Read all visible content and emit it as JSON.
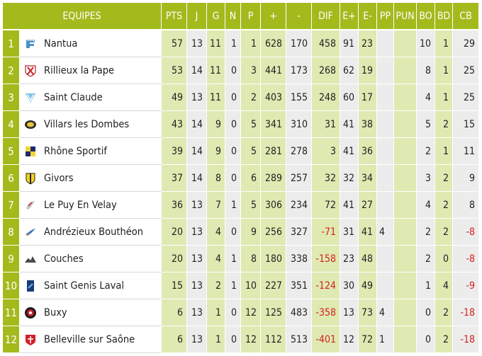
{
  "columns": [
    "EQUIPES",
    "PTS",
    "J",
    "G",
    "N",
    "P",
    "+",
    "-",
    "DIF",
    "E+",
    "E-",
    "PP",
    "PUN",
    "BO",
    "BD",
    "CB"
  ],
  "colors": {
    "accent": "#a3ba1c",
    "alt_cell": "#dfe9b2",
    "cell": "#ececec",
    "negative": "#d32020"
  },
  "rows": [
    {
      "rank": "1",
      "team": "Nantua",
      "logo": "nantua-logo-icon",
      "pts": "57",
      "j": "13",
      "g": "11",
      "n": "1",
      "p": "1",
      "plus": "628",
      "minus": "170",
      "dif": "458",
      "eplus": "91",
      "eminus": "23",
      "pp": "",
      "pun": "",
      "bo": "10",
      "bd": "1",
      "cb": "29"
    },
    {
      "rank": "2",
      "team": "Rillieux la Pape",
      "logo": "rillieux-logo-icon",
      "pts": "53",
      "j": "14",
      "g": "11",
      "n": "0",
      "p": "3",
      "plus": "441",
      "minus": "173",
      "dif": "268",
      "eplus": "62",
      "eminus": "19",
      "pp": "",
      "pun": "",
      "bo": "8",
      "bd": "1",
      "cb": "25"
    },
    {
      "rank": "3",
      "team": "Saint Claude",
      "logo": "saint-claude-logo-icon",
      "pts": "49",
      "j": "13",
      "g": "11",
      "n": "0",
      "p": "2",
      "plus": "403",
      "minus": "155",
      "dif": "248",
      "eplus": "60",
      "eminus": "17",
      "pp": "",
      "pun": "",
      "bo": "4",
      "bd": "1",
      "cb": "25"
    },
    {
      "rank": "4",
      "team": "Villars les Dombes",
      "logo": "villars-logo-icon",
      "pts": "43",
      "j": "14",
      "g": "9",
      "n": "0",
      "p": "5",
      "plus": "341",
      "minus": "310",
      "dif": "31",
      "eplus": "41",
      "eminus": "38",
      "pp": "",
      "pun": "",
      "bo": "5",
      "bd": "2",
      "cb": "15"
    },
    {
      "rank": "5",
      "team": "Rhône Sportif",
      "logo": "rhone-sportif-logo-icon",
      "pts": "39",
      "j": "14",
      "g": "9",
      "n": "0",
      "p": "5",
      "plus": "281",
      "minus": "278",
      "dif": "3",
      "eplus": "41",
      "eminus": "36",
      "pp": "",
      "pun": "",
      "bo": "2",
      "bd": "1",
      "cb": "11"
    },
    {
      "rank": "6",
      "team": "Givors",
      "logo": "givors-logo-icon",
      "pts": "37",
      "j": "14",
      "g": "8",
      "n": "0",
      "p": "6",
      "plus": "289",
      "minus": "257",
      "dif": "32",
      "eplus": "32",
      "eminus": "34",
      "pp": "",
      "pun": "",
      "bo": "3",
      "bd": "2",
      "cb": "9"
    },
    {
      "rank": "7",
      "team": "Le Puy En Velay",
      "logo": "le-puy-logo-icon",
      "pts": "36",
      "j": "13",
      "g": "7",
      "n": "1",
      "p": "5",
      "plus": "306",
      "minus": "234",
      "dif": "72",
      "eplus": "41",
      "eminus": "27",
      "pp": "",
      "pun": "",
      "bo": "4",
      "bd": "2",
      "cb": "8"
    },
    {
      "rank": "8",
      "team": "Andrézieux Bouthéon",
      "logo": "andrezieux-logo-icon",
      "pts": "20",
      "j": "13",
      "g": "4",
      "n": "0",
      "p": "9",
      "plus": "256",
      "minus": "327",
      "dif": "-71",
      "eplus": "31",
      "eminus": "41",
      "pp": "4",
      "pun": "",
      "bo": "2",
      "bd": "2",
      "cb": "-8"
    },
    {
      "rank": "9",
      "team": "Couches",
      "logo": "couches-logo-icon",
      "pts": "20",
      "j": "13",
      "g": "4",
      "n": "1",
      "p": "8",
      "plus": "180",
      "minus": "338",
      "dif": "-158",
      "eplus": "23",
      "eminus": "48",
      "pp": "",
      "pun": "",
      "bo": "2",
      "bd": "0",
      "cb": "-8"
    },
    {
      "rank": "10",
      "team": "Saint Genis Laval",
      "logo": "saint-genis-logo-icon",
      "pts": "15",
      "j": "13",
      "g": "2",
      "n": "1",
      "p": "10",
      "plus": "227",
      "minus": "351",
      "dif": "-124",
      "eplus": "30",
      "eminus": "49",
      "pp": "",
      "pun": "",
      "bo": "1",
      "bd": "4",
      "cb": "-9"
    },
    {
      "rank": "11",
      "team": "Buxy",
      "logo": "buxy-logo-icon",
      "pts": "6",
      "j": "13",
      "g": "1",
      "n": "0",
      "p": "12",
      "plus": "125",
      "minus": "483",
      "dif": "-358",
      "eplus": "13",
      "eminus": "73",
      "pp": "4",
      "pun": "",
      "bo": "0",
      "bd": "2",
      "cb": "-18"
    },
    {
      "rank": "12",
      "team": "Belleville sur Saône",
      "logo": "belleville-logo-icon",
      "pts": "6",
      "j": "13",
      "g": "1",
      "n": "0",
      "p": "12",
      "plus": "112",
      "minus": "513",
      "dif": "-401",
      "eplus": "12",
      "eminus": "72",
      "pp": "1",
      "pun": "",
      "bo": "0",
      "bd": "2",
      "cb": "-18"
    }
  ]
}
